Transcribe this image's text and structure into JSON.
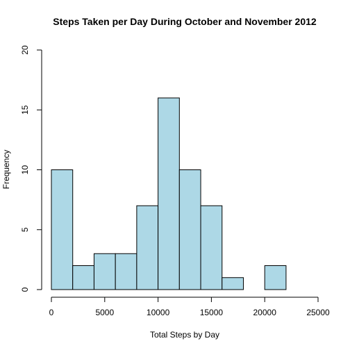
{
  "chart_data": {
    "type": "bar",
    "title": "Steps Taken per Day During October and November 2012",
    "xlabel": "Total Steps by Day",
    "ylabel": "Frequency",
    "xlim": [
      0,
      25000
    ],
    "ylim": [
      0,
      20
    ],
    "bin_width": 2000,
    "bins": [
      {
        "start": 0,
        "end": 2000,
        "count": 10
      },
      {
        "start": 2000,
        "end": 4000,
        "count": 2
      },
      {
        "start": 4000,
        "end": 6000,
        "count": 3
      },
      {
        "start": 6000,
        "end": 8000,
        "count": 3
      },
      {
        "start": 8000,
        "end": 10000,
        "count": 7
      },
      {
        "start": 10000,
        "end": 12000,
        "count": 16
      },
      {
        "start": 12000,
        "end": 14000,
        "count": 10
      },
      {
        "start": 14000,
        "end": 16000,
        "count": 7
      },
      {
        "start": 16000,
        "end": 18000,
        "count": 1
      },
      {
        "start": 18000,
        "end": 20000,
        "count": 0
      },
      {
        "start": 20000,
        "end": 22000,
        "count": 2
      }
    ],
    "x_ticks": [
      0,
      5000,
      10000,
      15000,
      20000,
      25000
    ],
    "y_ticks": [
      0,
      5,
      10,
      15,
      20
    ],
    "grid": false,
    "legend": "none",
    "bar_color": "#add8e6",
    "edge_color": "#000000"
  }
}
